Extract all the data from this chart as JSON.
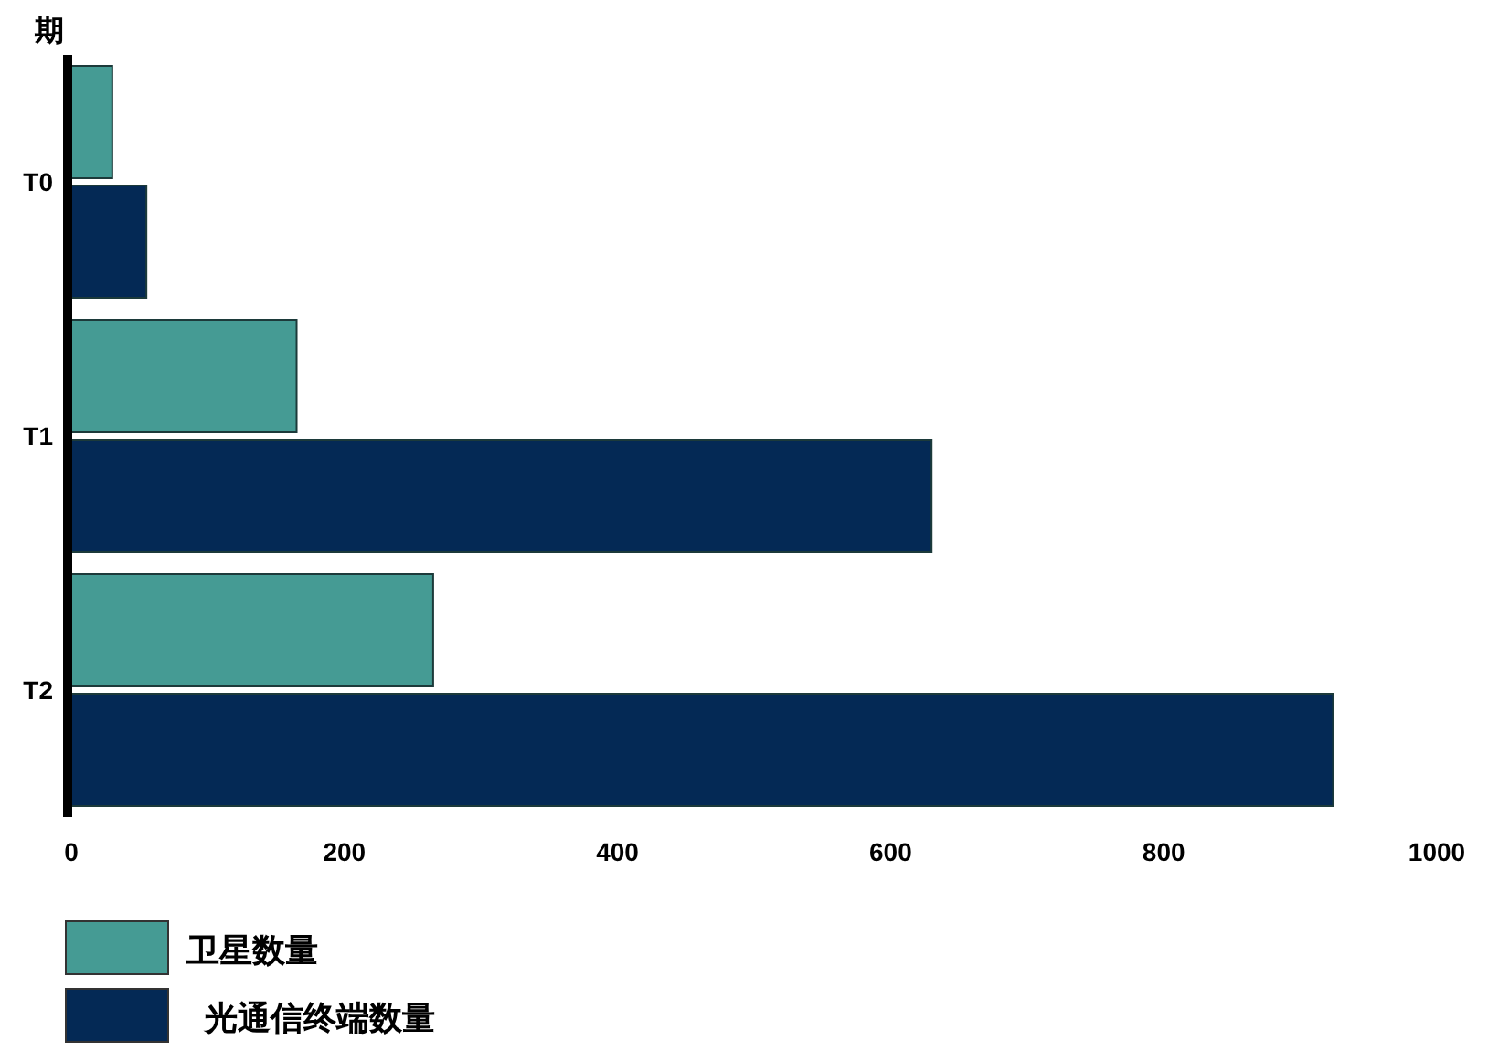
{
  "chart_data": {
    "type": "bar",
    "orientation": "horizontal",
    "ylabel": "期",
    "categories": [
      "T0",
      "T1",
      "T2"
    ],
    "series": [
      {
        "name": "卫星数量",
        "color": "#459b94",
        "values": [
          30,
          165,
          265
        ]
      },
      {
        "name": "光通信终端数量",
        "color": "#042955",
        "values": [
          55,
          630,
          924
        ]
      }
    ],
    "xlim": [
      0,
      1000
    ],
    "xticks": [
      0,
      200,
      400,
      600,
      800,
      1000
    ],
    "legend": "bottom left",
    "grid": false
  }
}
